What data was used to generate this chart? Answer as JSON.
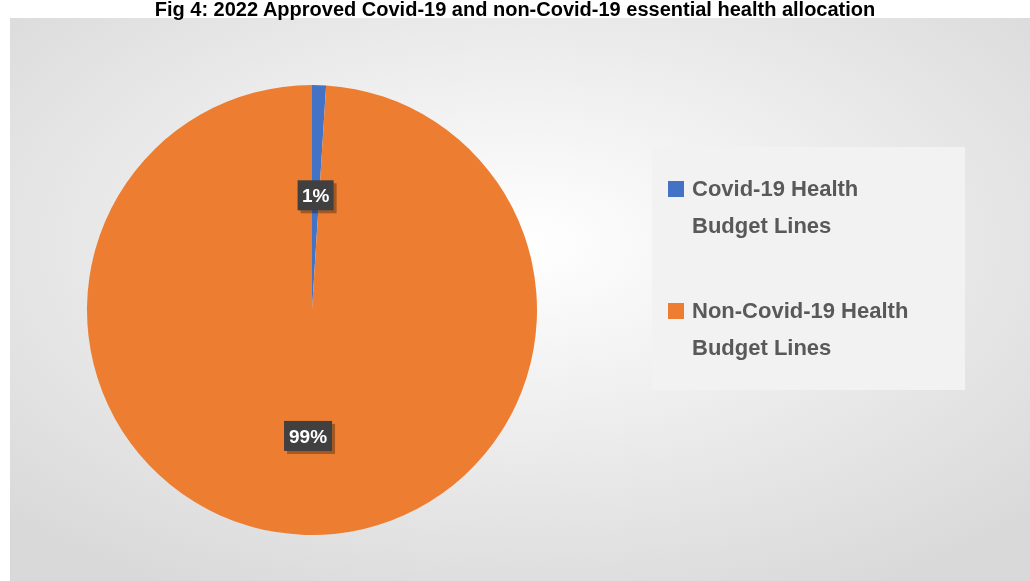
{
  "chart_data": {
    "type": "pie",
    "title": "Fig 4: 2022 Approved Covid-19 and non-Covid-19 essential health allocation",
    "categories": [
      "Covid-19 Health Budget Lines",
      "Non-Covid-19 Health Budget Lines"
    ],
    "values": [
      1,
      99
    ],
    "colors": [
      "#4472c4",
      "#ed7d31"
    ],
    "value_labels": [
      "1%",
      "99%"
    ],
    "legend": "right"
  }
}
